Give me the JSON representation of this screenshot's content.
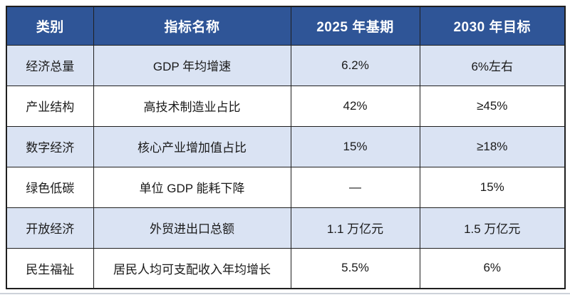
{
  "colors": {
    "header_bg": "#2F5597",
    "header_text": "#FFFFFF",
    "row_alt_bg": "#DAE3F3",
    "row_bg": "#FFFFFF",
    "border": "#1F1F1F",
    "body_text": "#1A1A1A"
  },
  "table": {
    "columns": [
      "类别",
      "指标名称",
      "2025 年基期",
      "2030 年目标"
    ],
    "rows": [
      {
        "category": "经济总量",
        "indicator": "GDP 年均增速",
        "base_2025": "6.2%",
        "target_2030": "6%左右"
      },
      {
        "category": "产业结构",
        "indicator": "高技术制造业占比",
        "base_2025": "42%",
        "target_2030": "≥45%"
      },
      {
        "category": "数字经济",
        "indicator": "核心产业增加值占比",
        "base_2025": "15%",
        "target_2030": "≥18%"
      },
      {
        "category": "绿色低碳",
        "indicator": "单位 GDP 能耗下降",
        "base_2025": "—",
        "target_2030": "15%"
      },
      {
        "category": "开放经济",
        "indicator": "外贸进出口总额",
        "base_2025": "1.1 万亿元",
        "target_2030": "1.5 万亿元"
      },
      {
        "category": "民生福祉",
        "indicator": "居民人均可支配收入年均增长",
        "base_2025": "5.5%",
        "target_2030": "6%"
      }
    ]
  }
}
